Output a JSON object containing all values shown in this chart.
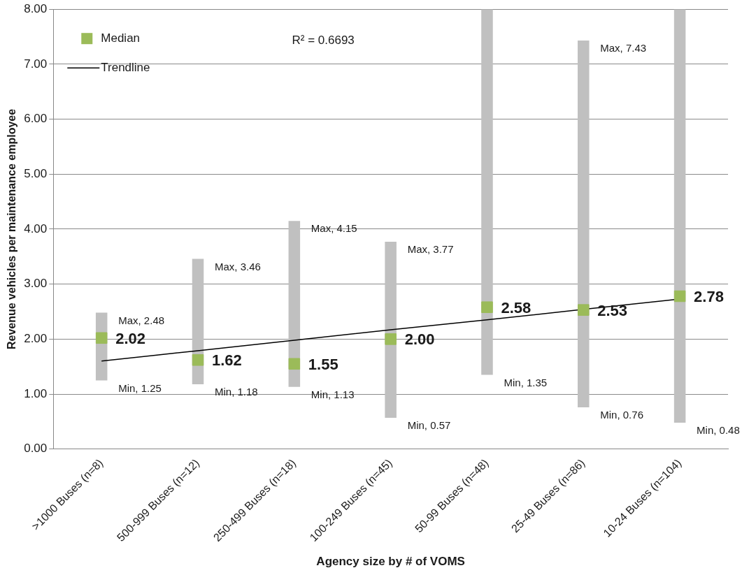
{
  "chart_data": {
    "type": "bar",
    "xlabel": "Agency size by # of VOMS",
    "ylabel": "Revenue vehicles per maintenance employee",
    "categories": [
      ">1000 Buses (n=8)",
      "500-999 Buses (n=12)",
      "250-499 Buses (n=18)",
      "100-249 Buses (n=45)",
      "50-99 Buses (n=48)",
      "25-49 Buses (n=86)",
      "10-24 Buses (n=104)"
    ],
    "series": [
      {
        "color": "#c0c0c0",
        "base": [
          1.25,
          1.18,
          1.13,
          0.57,
          1.35,
          0.76,
          0.48
        ],
        "values": [
          1.23,
          2.28,
          3.02,
          3.2,
          6.65,
          6.67,
          7.52
        ]
      },
      {
        "type": "scatter",
        "name": "Median",
        "color": "#9bbb59",
        "marker": "square",
        "values": [
          2.02,
          1.62,
          1.55,
          2.0,
          2.58,
          2.53,
          2.78
        ],
        "value_labels": [
          "2.02",
          "1.62",
          "1.55",
          "2.00",
          "2.58",
          "2.53",
          "2.78"
        ]
      },
      {
        "type": "line",
        "name": "Trendline",
        "color": "#000000",
        "marker": "none",
        "line_style": "solid",
        "values": [
          1.6,
          1.79,
          1.98,
          2.17,
          2.35,
          2.54,
          2.73
        ]
      }
    ],
    "ylim": [
      0,
      8
    ],
    "yticks": [
      {
        "value": 0,
        "label": "0.00"
      },
      {
        "value": 1,
        "label": "1.00"
      },
      {
        "value": 2,
        "label": "2.00"
      },
      {
        "value": 3,
        "label": "3.00"
      },
      {
        "value": 4,
        "label": "4.00"
      },
      {
        "value": 5,
        "label": "5.00"
      },
      {
        "value": 6,
        "label": "6.00"
      },
      {
        "value": 7,
        "label": "7.00"
      },
      {
        "value": 8,
        "label": "8.00"
      }
    ],
    "grid": "y",
    "legend": "top left",
    "annotations": [
      "R² = 0.6693",
      {
        "text": "Max, 2.48",
        "x": ">1000 Buses (n=8)",
        "y": 2.48
      },
      {
        "text": "Min, 1.25",
        "x": ">1000 Buses (n=8)",
        "y": 1.25
      },
      {
        "text": "Max, 3.46",
        "x": "500-999 Buses (n=12)",
        "y": 3.46
      },
      {
        "text": "Min, 1.18",
        "x": "500-999 Buses (n=12)",
        "y": 1.18
      },
      {
        "text": "Max, 4.15",
        "x": "250-499 Buses (n=18)",
        "y": 4.15
      },
      {
        "text": "Min, 1.13",
        "x": "250-499 Buses (n=18)",
        "y": 1.13
      },
      {
        "text": "Max, 3.77",
        "x": "100-249 Buses (n=45)",
        "y": 3.77
      },
      {
        "text": "Min, 0.57",
        "x": "100-249 Buses (n=45)",
        "y": 0.57
      },
      {
        "text": "Min, 1.35",
        "x": "50-99 Buses (n=48)",
        "y": 1.35
      },
      {
        "text": "Max, 7.43",
        "x": "25-49 Buses (n=86)",
        "y": 7.43
      },
      {
        "text": "Min, 0.76",
        "x": "25-49 Buses (n=86)",
        "y": 0.76
      },
      {
        "text": "Min, 0.48",
        "x": "10-24 Buses (n=104)",
        "y": 0.48
      }
    ]
  }
}
